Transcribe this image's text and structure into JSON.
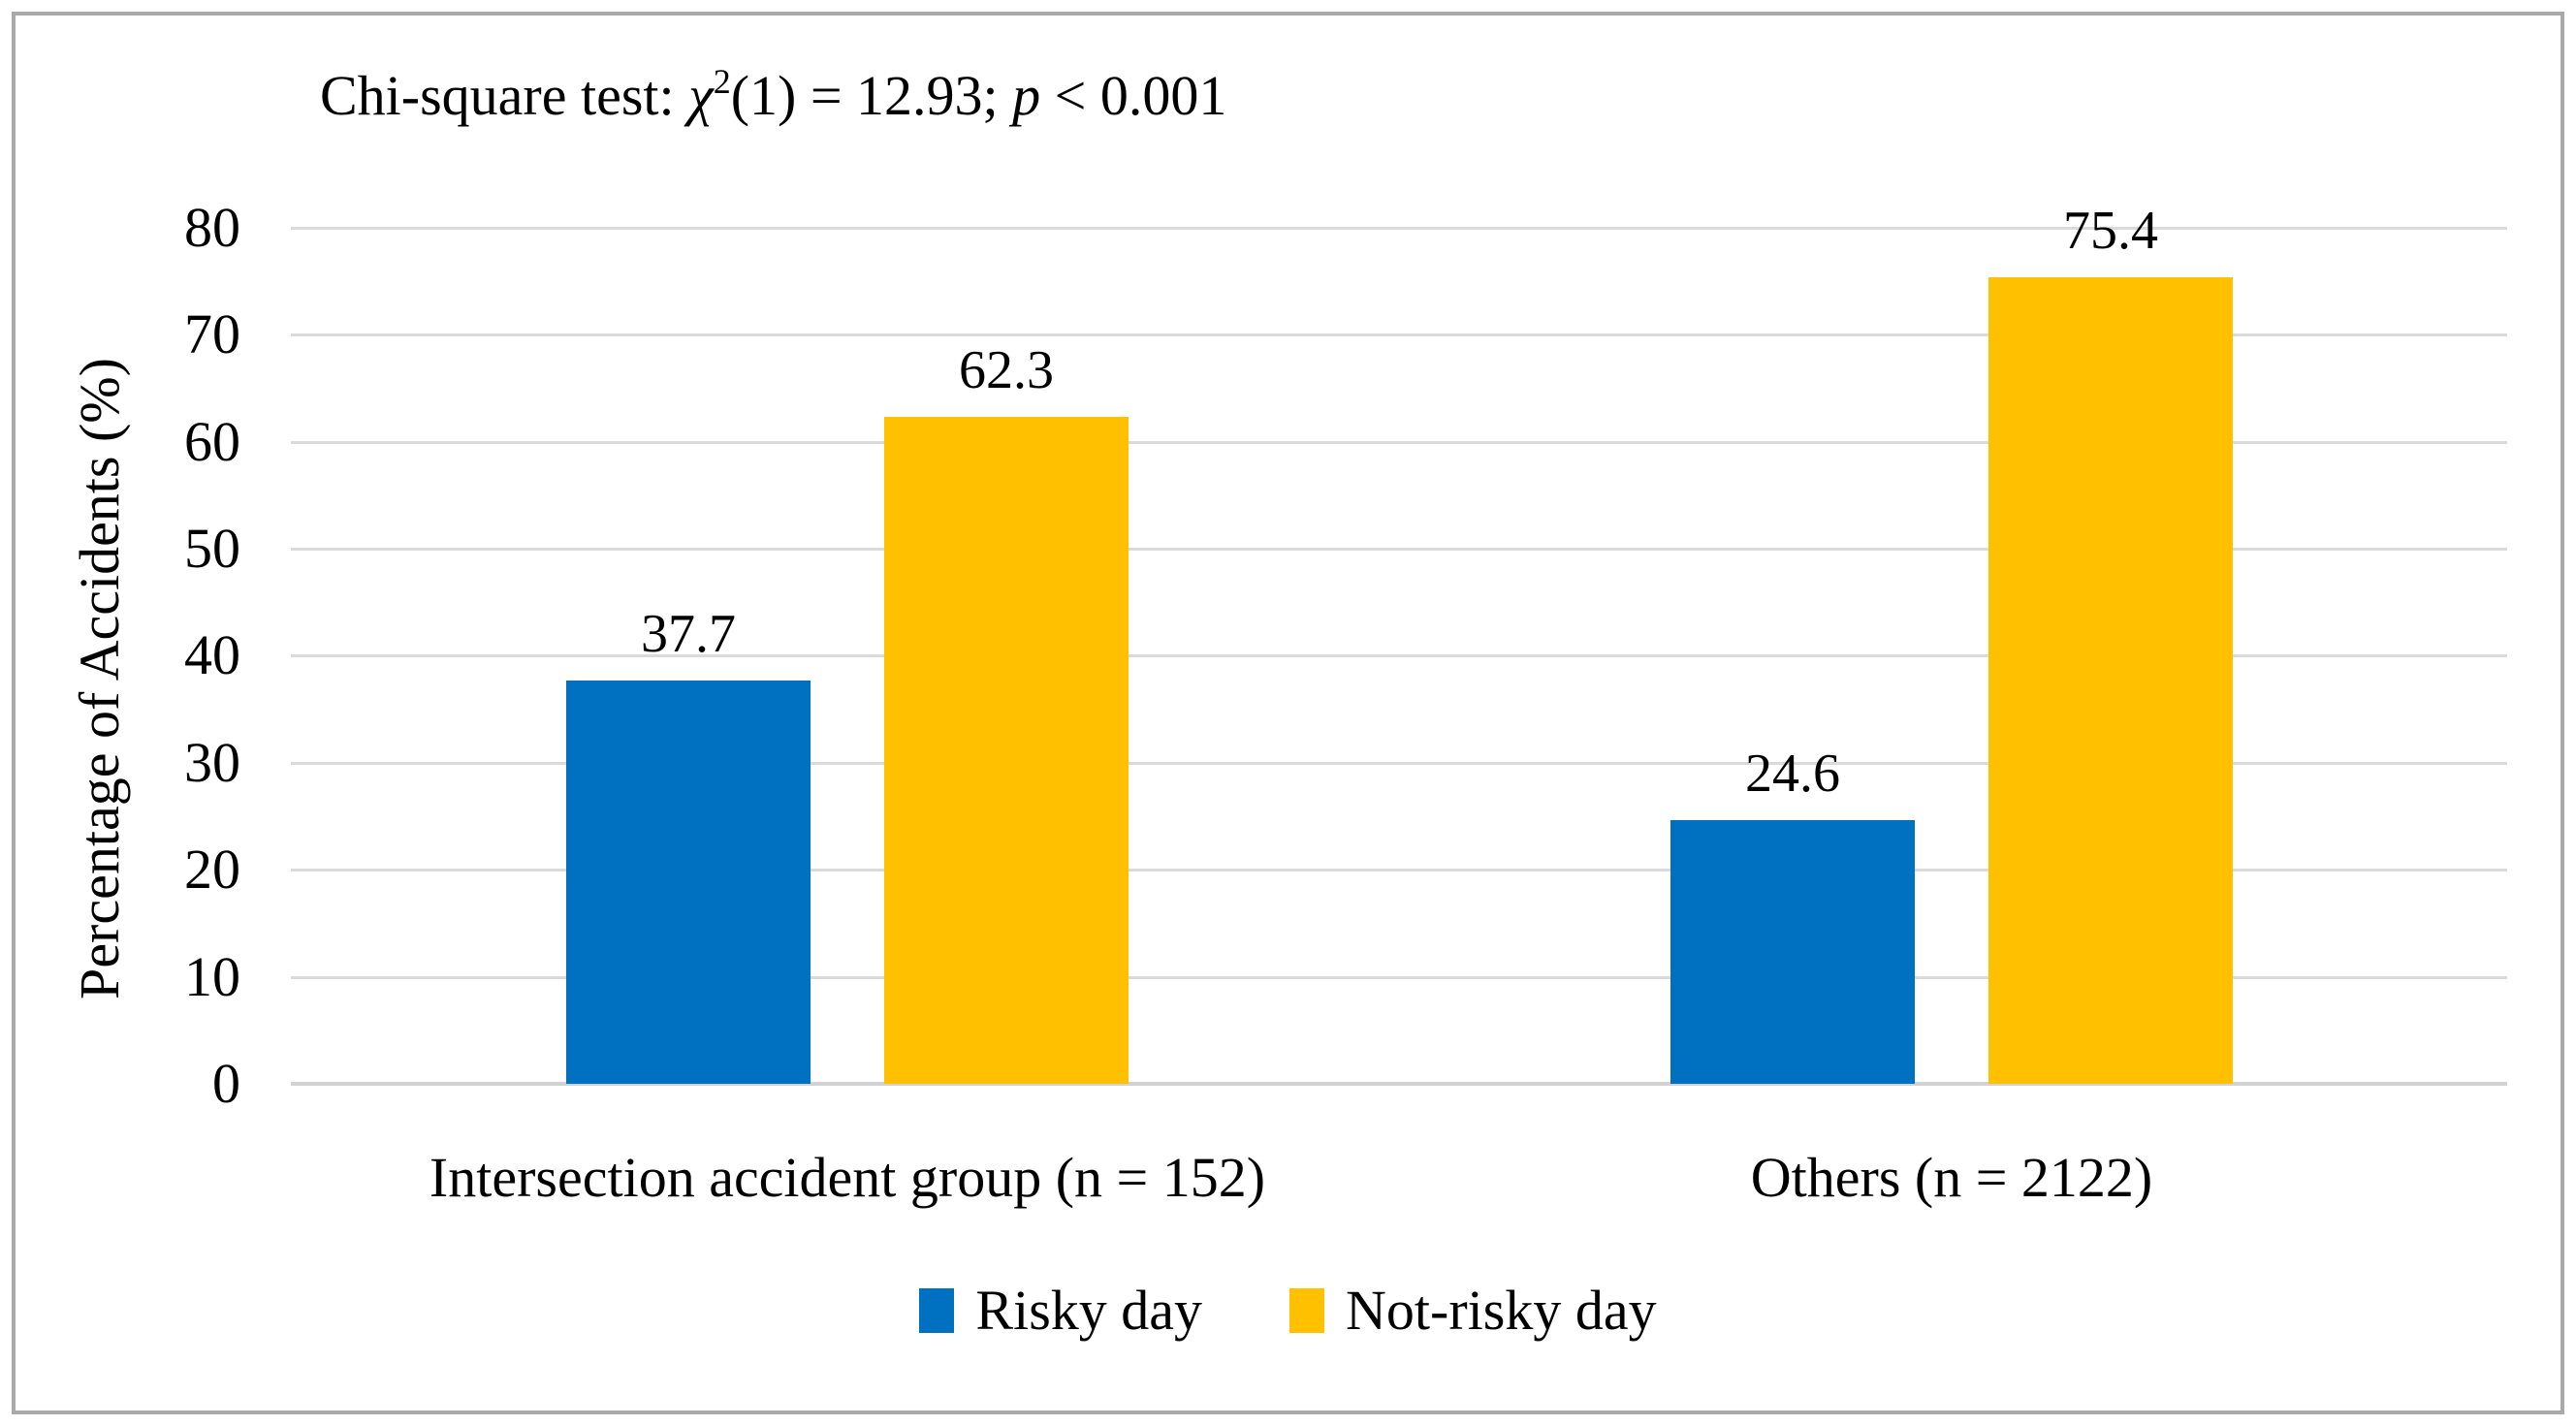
{
  "title_parts": {
    "prefix": "Chi-square test: ",
    "chi_symbol": "χ",
    "chi_sup": "2",
    "mid": "(1) = 12.93; ",
    "p_symbol": "p",
    "suffix": " < 0.001"
  },
  "chart_data": {
    "type": "bar",
    "title": "Chi-square test: χ²(1) = 12.93; p < 0.001",
    "categories": [
      "Intersection accident group (n = 152)",
      "Others (n = 2122)"
    ],
    "series": [
      {
        "name": "Risky day",
        "color": "#0070C0",
        "values": [
          37.7,
          24.6
        ]
      },
      {
        "name": "Not-risky day",
        "color": "#FFC000",
        "values": [
          62.3,
          75.4
        ]
      }
    ],
    "xlabel": "",
    "ylabel": "Percentage of Accidents (%)",
    "ylim": [
      0,
      80
    ],
    "yticks": [
      0,
      10,
      20,
      30,
      40,
      50,
      60,
      70,
      80
    ],
    "grid": "horizontal",
    "legend_position": "bottom",
    "value_labels_shown": true,
    "colors": {
      "gridline": "#DADADA",
      "axis_line": "#D2D2D2",
      "text": "#000000",
      "background": "#FFFFFF",
      "frame_border": "#A9A9A9"
    }
  }
}
